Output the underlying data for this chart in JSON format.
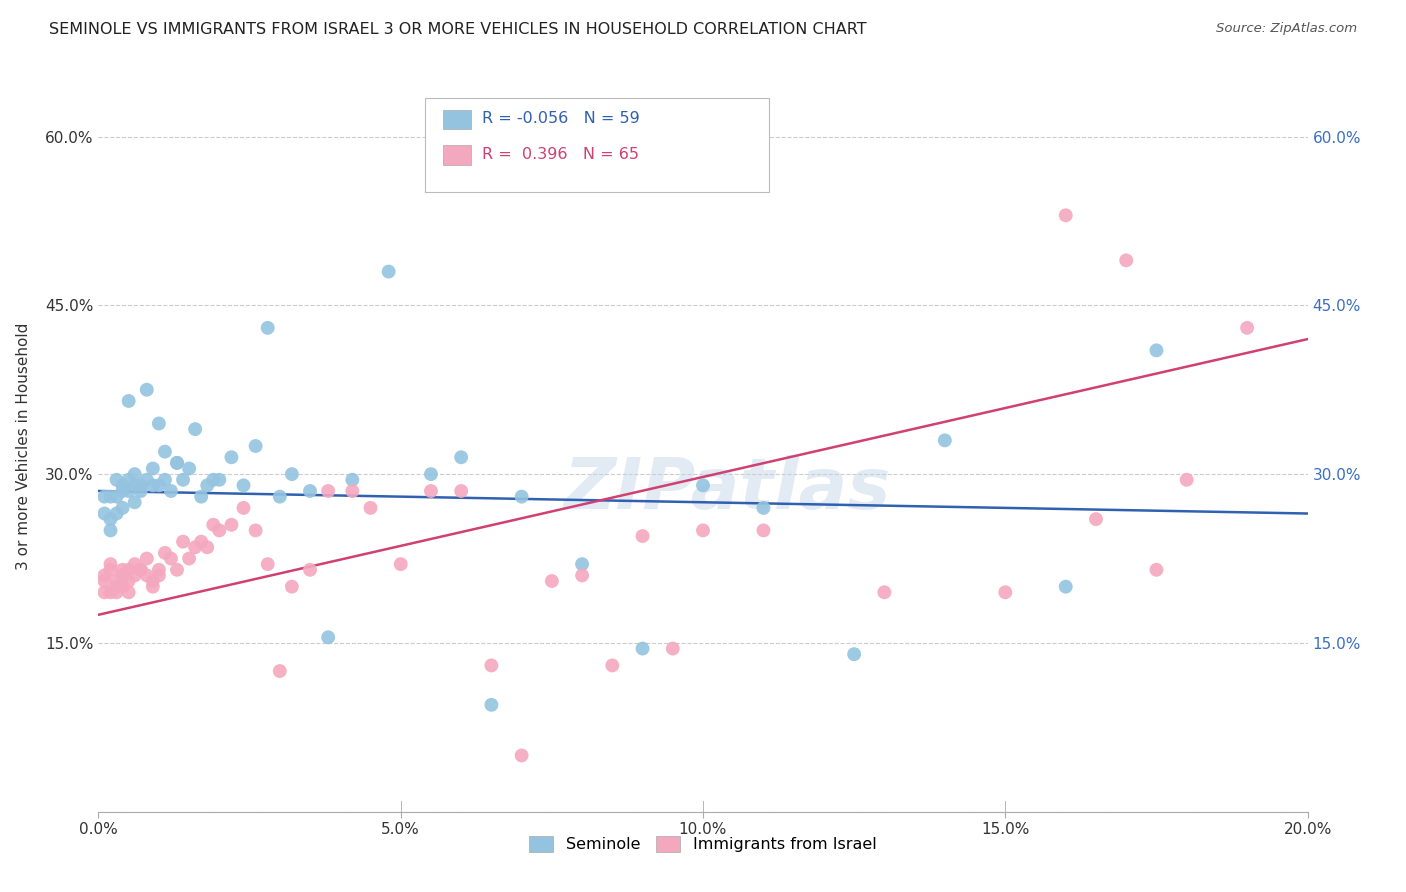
{
  "title": "SEMINOLE VS IMMIGRANTS FROM ISRAEL 3 OR MORE VEHICLES IN HOUSEHOLD CORRELATION CHART",
  "source": "Source: ZipAtlas.com",
  "ylabel": "3 or more Vehicles in Household",
  "xlim": [
    0.0,
    0.2
  ],
  "ylim": [
    0.0,
    0.65
  ],
  "x_ticks": [
    0.0,
    0.05,
    0.1,
    0.15,
    0.2
  ],
  "x_tick_labels": [
    "0.0%",
    "5.0%",
    "10.0%",
    "15.0%",
    "20.0%"
  ],
  "y_ticks": [
    0.0,
    0.15,
    0.3,
    0.45,
    0.6
  ],
  "y_tick_labels": [
    "",
    "15.0%",
    "30.0%",
    "45.0%",
    "60.0%"
  ],
  "seminole_color": "#94c3e0",
  "israel_color": "#f4a8bf",
  "seminole_line_color": "#3060b0",
  "israel_line_color": "#d04070",
  "watermark": "ZIPatlas",
  "background_color": "#ffffff",
  "grid_color": "#cccccc",
  "seminole_x": [
    0.001,
    0.001,
    0.002,
    0.002,
    0.002,
    0.003,
    0.003,
    0.003,
    0.004,
    0.004,
    0.004,
    0.005,
    0.005,
    0.005,
    0.006,
    0.006,
    0.006,
    0.007,
    0.007,
    0.008,
    0.008,
    0.009,
    0.009,
    0.01,
    0.01,
    0.011,
    0.011,
    0.012,
    0.013,
    0.013,
    0.014,
    0.015,
    0.016,
    0.017,
    0.018,
    0.019,
    0.02,
    0.022,
    0.024,
    0.026,
    0.028,
    0.03,
    0.032,
    0.035,
    0.038,
    0.042,
    0.048,
    0.055,
    0.06,
    0.065,
    0.07,
    0.08,
    0.09,
    0.1,
    0.11,
    0.125,
    0.14,
    0.16,
    0.175
  ],
  "seminole_y": [
    0.28,
    0.265,
    0.28,
    0.26,
    0.25,
    0.295,
    0.28,
    0.265,
    0.29,
    0.285,
    0.27,
    0.295,
    0.285,
    0.365,
    0.29,
    0.275,
    0.3,
    0.29,
    0.285,
    0.295,
    0.375,
    0.305,
    0.29,
    0.345,
    0.29,
    0.295,
    0.32,
    0.285,
    0.31,
    0.31,
    0.295,
    0.305,
    0.34,
    0.28,
    0.29,
    0.295,
    0.295,
    0.315,
    0.29,
    0.325,
    0.43,
    0.28,
    0.3,
    0.285,
    0.155,
    0.295,
    0.48,
    0.3,
    0.315,
    0.095,
    0.28,
    0.22,
    0.145,
    0.29,
    0.27,
    0.14,
    0.33,
    0.2,
    0.41
  ],
  "israel_x": [
    0.001,
    0.001,
    0.001,
    0.002,
    0.002,
    0.002,
    0.003,
    0.003,
    0.003,
    0.004,
    0.004,
    0.004,
    0.005,
    0.005,
    0.005,
    0.006,
    0.006,
    0.007,
    0.007,
    0.008,
    0.008,
    0.009,
    0.009,
    0.01,
    0.01,
    0.011,
    0.012,
    0.013,
    0.014,
    0.015,
    0.016,
    0.017,
    0.018,
    0.019,
    0.02,
    0.022,
    0.024,
    0.026,
    0.028,
    0.03,
    0.032,
    0.035,
    0.038,
    0.042,
    0.045,
    0.05,
    0.055,
    0.06,
    0.065,
    0.07,
    0.075,
    0.08,
    0.085,
    0.09,
    0.095,
    0.1,
    0.11,
    0.13,
    0.15,
    0.16,
    0.165,
    0.17,
    0.175,
    0.18,
    0.19
  ],
  "israel_y": [
    0.205,
    0.195,
    0.21,
    0.195,
    0.215,
    0.22,
    0.2,
    0.195,
    0.205,
    0.215,
    0.21,
    0.2,
    0.215,
    0.205,
    0.195,
    0.21,
    0.22,
    0.215,
    0.215,
    0.225,
    0.21,
    0.2,
    0.205,
    0.21,
    0.215,
    0.23,
    0.225,
    0.215,
    0.24,
    0.225,
    0.235,
    0.24,
    0.235,
    0.255,
    0.25,
    0.255,
    0.27,
    0.25,
    0.22,
    0.125,
    0.2,
    0.215,
    0.285,
    0.285,
    0.27,
    0.22,
    0.285,
    0.285,
    0.13,
    0.05,
    0.205,
    0.21,
    0.13,
    0.245,
    0.145,
    0.25,
    0.25,
    0.195,
    0.195,
    0.53,
    0.26,
    0.49,
    0.215,
    0.295,
    0.43
  ]
}
